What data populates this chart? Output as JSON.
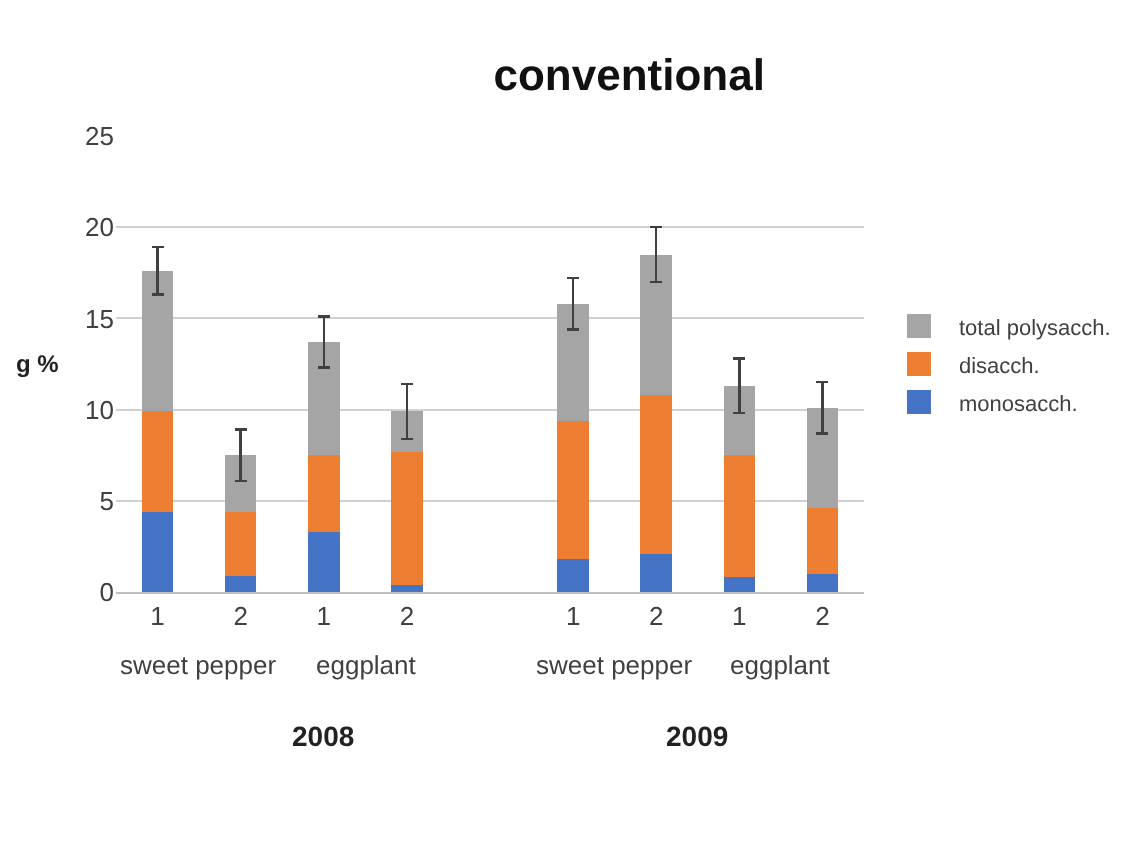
{
  "chart_data": {
    "type": "bar",
    "title": "conventional",
    "ylabel": "g %",
    "stacked": true,
    "categories": [
      "1",
      "2",
      "1",
      "2",
      null,
      "1",
      "2",
      "1",
      "2"
    ],
    "series": [
      {
        "name": "monosacch.",
        "color": "#4472c4",
        "values": [
          4.4,
          0.9,
          3.3,
          0.4,
          null,
          1.8,
          2.1,
          0.8,
          1.0
        ]
      },
      {
        "name": "disacch.",
        "color": "#ed7d31",
        "values": [
          5.5,
          3.5,
          4.2,
          7.3,
          null,
          7.6,
          8.7,
          6.7,
          3.6
        ]
      },
      {
        "name": "total polysacch.",
        "color": "#a5a5a5",
        "values": [
          7.7,
          3.1,
          6.2,
          2.2,
          null,
          6.4,
          7.7,
          3.8,
          5.5
        ],
        "errors": [
          1.3,
          1.4,
          1.4,
          1.5,
          null,
          1.4,
          1.5,
          1.5,
          1.4
        ]
      }
    ],
    "ylim": [
      0,
      25
    ],
    "yticks": [
      0,
      5,
      10,
      15,
      20,
      25
    ],
    "grid": "y",
    "legend": "right",
    "annotations": [
      "sweet pepper",
      "eggplant",
      "sweet pepper",
      "eggplant",
      "2008",
      "2009"
    ]
  }
}
